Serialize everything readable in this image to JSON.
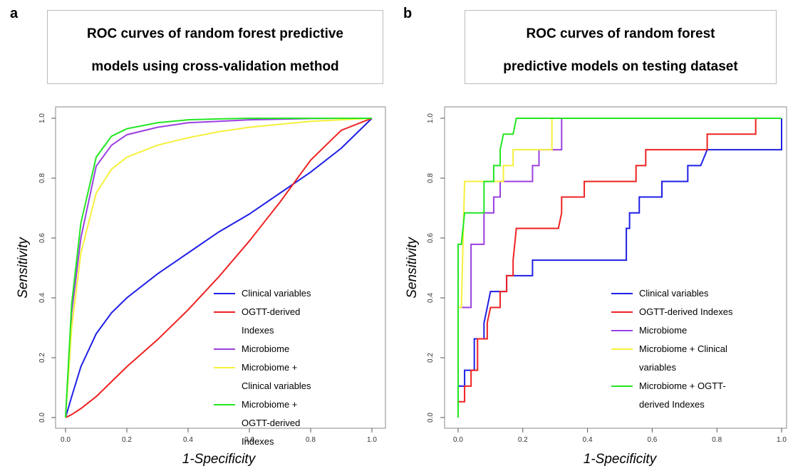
{
  "chart_data": [
    {
      "type": "line",
      "panel_label": "a",
      "title": [
        "ROC curves of random forest predictive",
        "models using cross-validation method"
      ],
      "x_label": "1-Specificity",
      "y_label": "Sensitivity",
      "xlim": [
        0,
        1
      ],
      "ylim": [
        0,
        1
      ],
      "xticks": [
        {
          "value": 0,
          "label": "0.0"
        },
        0.2,
        0.4,
        0.6,
        0.8,
        {
          "value": 1,
          "label": "1.0"
        }
      ],
      "yticks": [
        {
          "value": 0,
          "label": "0.0"
        },
        0.2,
        0.4,
        0.6,
        0.8,
        {
          "value": 1,
          "label": "1.0"
        }
      ],
      "series": [
        {
          "name": "Clinical variables",
          "color": "#1f1fe6",
          "x": [
            0,
            0.02,
            0.05,
            0.1,
            0.15,
            0.2,
            0.3,
            0.4,
            0.5,
            0.6,
            0.7,
            0.8,
            0.9,
            1
          ],
          "values": [
            0,
            0.07,
            0.17,
            0.28,
            0.35,
            0.4,
            0.48,
            0.55,
            0.62,
            0.68,
            0.75,
            0.82,
            0.9,
            1
          ]
        },
        {
          "name": "OGTT-derived Indexes",
          "color": "#ee2222",
          "x": [
            0,
            0.02,
            0.05,
            0.1,
            0.15,
            0.2,
            0.3,
            0.4,
            0.5,
            0.6,
            0.7,
            0.8,
            0.9,
            1
          ],
          "values": [
            0,
            0.01,
            0.03,
            0.07,
            0.12,
            0.17,
            0.26,
            0.36,
            0.47,
            0.59,
            0.72,
            0.86,
            0.96,
            1
          ]
        },
        {
          "name": "Microbiome",
          "color": "#9b3fe0",
          "x": [
            0,
            0.02,
            0.05,
            0.1,
            0.15,
            0.2,
            0.3,
            0.4,
            0.5,
            0.6,
            0.7,
            0.8,
            0.9,
            1
          ],
          "values": [
            0,
            0.35,
            0.6,
            0.84,
            0.91,
            0.945,
            0.97,
            0.985,
            0.99,
            0.995,
            0.997,
            0.999,
            1,
            1
          ]
        },
        {
          "name": "Microbiome + Clinical variables",
          "color": "#f5f03a",
          "x": [
            0,
            0.02,
            0.05,
            0.1,
            0.15,
            0.2,
            0.3,
            0.4,
            0.5,
            0.6,
            0.7,
            0.8,
            0.9,
            1
          ],
          "values": [
            0,
            0.3,
            0.55,
            0.75,
            0.83,
            0.87,
            0.91,
            0.935,
            0.955,
            0.97,
            0.98,
            0.99,
            0.995,
            1
          ]
        },
        {
          "name": "Microbiome + OGTT-derived Indexes",
          "color": "#22e622",
          "x": [
            0,
            0.02,
            0.05,
            0.1,
            0.15,
            0.2,
            0.3,
            0.4,
            0.5,
            0.6,
            0.7,
            0.8,
            0.9,
            1
          ],
          "values": [
            0,
            0.38,
            0.65,
            0.87,
            0.94,
            0.965,
            0.985,
            0.995,
            0.998,
            1,
            1,
            1,
            1,
            1
          ]
        }
      ]
    },
    {
      "type": "line",
      "panel_label": "b",
      "title": [
        "ROC curves of random forest",
        "predictive models on testing dataset"
      ],
      "x_label": "1-Specificity",
      "y_label": "Sensitivity",
      "xlim": [
        0,
        1
      ],
      "ylim": [
        0,
        1
      ],
      "xticks": [
        {
          "value": 0,
          "label": "0.0"
        },
        0.2,
        0.4,
        0.6,
        0.8,
        {
          "value": 1,
          "label": "1.0"
        }
      ],
      "yticks": [
        {
          "value": 0,
          "label": "0.0"
        },
        0.2,
        0.4,
        0.6,
        0.8,
        {
          "value": 1,
          "label": "1.0"
        }
      ],
      "series": [
        {
          "name": "Clinical variables",
          "color": "#1f1fe6",
          "x": [
            0,
            0,
            0.02,
            0.02,
            0.05,
            0.05,
            0.08,
            0.08,
            0.09,
            0.1,
            0.15,
            0.15,
            0.23,
            0.23,
            0.52,
            0.52,
            0.53,
            0.53,
            0.56,
            0.56,
            0.63,
            0.63,
            0.71,
            0.71,
            0.75,
            0.77,
            1,
            1
          ],
          "values": [
            0,
            0.105,
            0.105,
            0.158,
            0.158,
            0.263,
            0.263,
            0.316,
            0.368,
            0.421,
            0.421,
            0.474,
            0.474,
            0.526,
            0.526,
            0.632,
            0.632,
            0.684,
            0.684,
            0.737,
            0.737,
            0.789,
            0.789,
            0.842,
            0.842,
            0.895,
            0.895,
            1
          ]
        },
        {
          "name": "OGTT-derived Indexes",
          "color": "#ee2222",
          "x": [
            0,
            0,
            0.02,
            0.02,
            0.04,
            0.04,
            0.06,
            0.06,
            0.09,
            0.09,
            0.1,
            0.13,
            0.13,
            0.15,
            0.15,
            0.17,
            0.17,
            0.18,
            0.31,
            0.32,
            0.32,
            0.39,
            0.39,
            0.55,
            0.55,
            0.58,
            0.58,
            0.77,
            0.77,
            0.92,
            0.92,
            1
          ],
          "values": [
            0,
            0.053,
            0.053,
            0.105,
            0.105,
            0.158,
            0.158,
            0.263,
            0.263,
            0.316,
            0.368,
            0.368,
            0.421,
            0.421,
            0.474,
            0.474,
            0.526,
            0.632,
            0.632,
            0.684,
            0.737,
            0.737,
            0.789,
            0.789,
            0.842,
            0.842,
            0.895,
            0.895,
            0.947,
            0.947,
            1,
            1
          ]
        },
        {
          "name": "Microbiome",
          "color": "#9b3fe0",
          "x": [
            0,
            0,
            0.04,
            0.04,
            0.08,
            0.08,
            0.11,
            0.11,
            0.13,
            0.13,
            0.23,
            0.23,
            0.25,
            0.25,
            0.32,
            0.32,
            1
          ],
          "values": [
            0,
            0.368,
            0.368,
            0.579,
            0.579,
            0.684,
            0.684,
            0.737,
            0.737,
            0.789,
            0.789,
            0.842,
            0.842,
            0.895,
            0.895,
            1,
            1
          ]
        },
        {
          "name": "Microbiome + Clinical variables",
          "color": "#f5f03a",
          "x": [
            0,
            0,
            0.01,
            0.02,
            0.14,
            0.14,
            0.17,
            0.17,
            0.29,
            0.29,
            1
          ],
          "values": [
            0,
            0.368,
            0.368,
            0.789,
            0.789,
            0.842,
            0.842,
            0.895,
            0.895,
            1,
            1
          ]
        },
        {
          "name": "Microbiome + OGTT-derived Indexes",
          "color": "#22e622",
          "x": [
            0,
            0,
            0.01,
            0.02,
            0.08,
            0.08,
            0.11,
            0.11,
            0.13,
            0.13,
            0.14,
            0.17,
            0.18,
            1
          ],
          "values": [
            0,
            0.579,
            0.579,
            0.684,
            0.684,
            0.789,
            0.789,
            0.842,
            0.842,
            0.895,
            0.947,
            0.947,
            1,
            1
          ]
        }
      ]
    }
  ]
}
